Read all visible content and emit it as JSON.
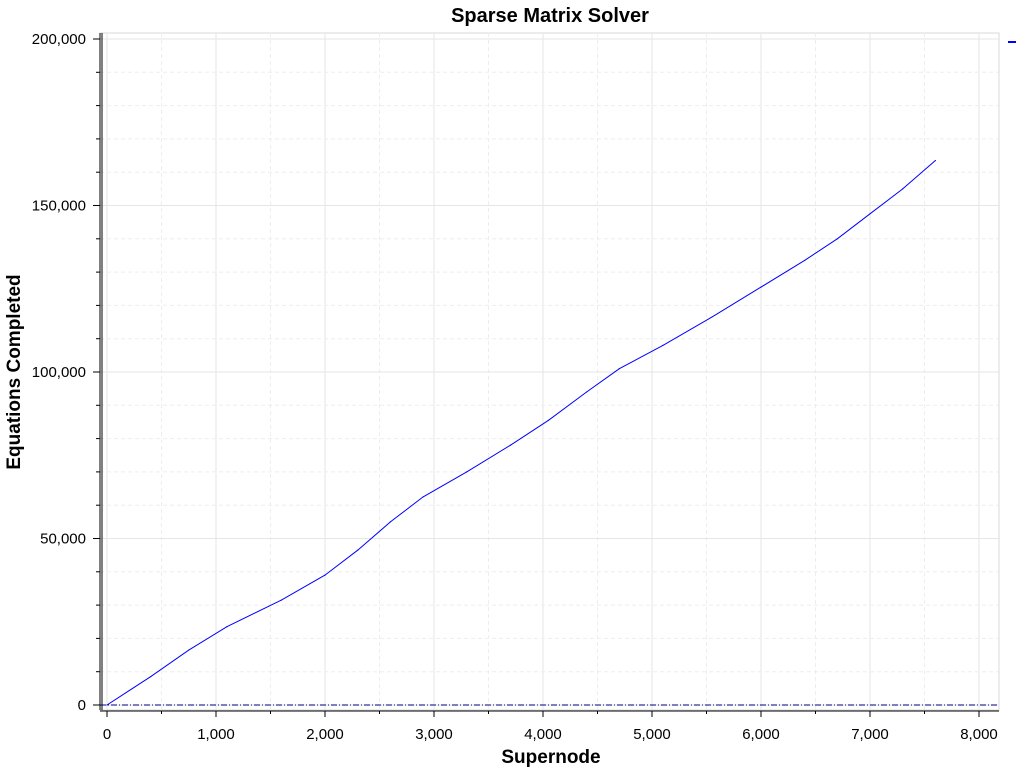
{
  "chart_data": {
    "type": "line",
    "title": "Sparse Matrix Solver",
    "xlabel": "Supernode",
    "ylabel": "Equations Completed",
    "xlim": [
      0,
      8000
    ],
    "ylim": [
      0,
      200000
    ],
    "x_ticks": [
      0,
      1000,
      2000,
      3000,
      4000,
      5000,
      6000,
      7000,
      8000
    ],
    "x_tick_labels": [
      "0",
      "1,000",
      "2,000",
      "3,000",
      "4,000",
      "5,000",
      "6,000",
      "7,000",
      "8,000"
    ],
    "y_ticks": [
      0,
      50000,
      100000,
      150000,
      200000
    ],
    "y_tick_labels": [
      "0",
      "50,000",
      "100,000",
      "150,000",
      "200,000"
    ],
    "grid": true,
    "legend": "top-right",
    "colors": {
      "series": "#0000ff",
      "zero_line": "#000080"
    },
    "series": [
      {
        "x": [
          0,
          400,
          750,
          1100,
          1600,
          2000,
          2300,
          2600,
          2900,
          3300,
          3700,
          4050,
          4400,
          4700,
          5100,
          5550,
          6000,
          6400,
          6700,
          7000,
          7300,
          7600
        ],
        "y": [
          0,
          8500,
          16500,
          23500,
          31500,
          39000,
          46500,
          55000,
          62500,
          70000,
          78000,
          85500,
          94000,
          101000,
          108000,
          116500,
          125500,
          133500,
          140000,
          147500,
          155000,
          163500
        ]
      }
    ]
  }
}
